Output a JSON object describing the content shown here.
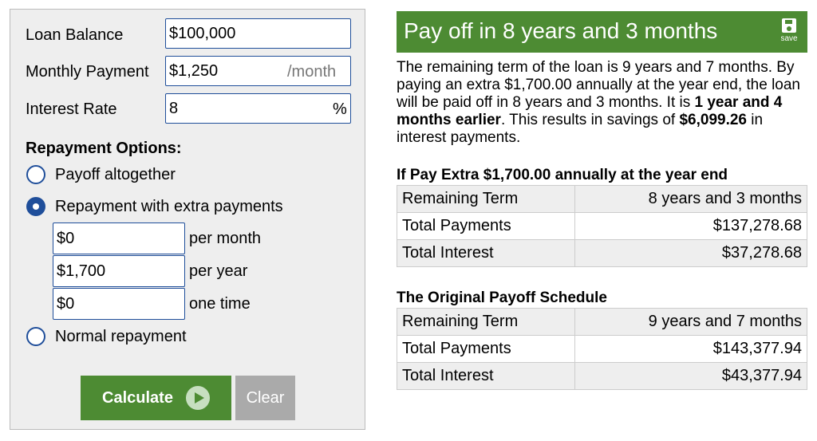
{
  "form": {
    "loan_balance": {
      "label": "Loan Balance",
      "value": "$100,000"
    },
    "monthly_payment": {
      "label": "Monthly Payment",
      "value": "$1,250",
      "suffix": "/month"
    },
    "interest_rate": {
      "label": "Interest Rate",
      "value": "8",
      "suffix": "%"
    },
    "repayment_heading": "Repayment Options:",
    "options": [
      {
        "label": "Payoff altogether",
        "checked": false
      },
      {
        "label": "Repayment with extra payments",
        "checked": true
      },
      {
        "label": "Normal repayment",
        "checked": false
      }
    ],
    "extra": [
      {
        "value": "$0",
        "label": "per month"
      },
      {
        "value": "$1,700",
        "label": "per year"
      },
      {
        "value": "$0",
        "label": "one time"
      }
    ],
    "calculate_label": "Calculate",
    "clear_label": "Clear"
  },
  "results": {
    "title": "Pay off in 8 years and 3 months",
    "save_label": "save",
    "summary": {
      "p1": "The remaining term of the loan is 9 years and 7 months. By paying an extra $1,700.00 annually at the year end, the loan will be paid off in 8 years and 3 months. It is ",
      "b1": "1 year and 4 months earlier",
      "p2": ". This results in savings of ",
      "b2": "$6,099.26",
      "p3": " in interest payments."
    },
    "extra_table": {
      "caption": "If Pay Extra $1,700.00 annually at the year end",
      "rows": [
        {
          "key": "Remaining Term",
          "value": "8 years and 3 months"
        },
        {
          "key": "Total Payments",
          "value": "$137,278.68"
        },
        {
          "key": "Total Interest",
          "value": "$37,278.68"
        }
      ]
    },
    "original_table": {
      "caption": "The Original Payoff Schedule",
      "rows": [
        {
          "key": "Remaining Term",
          "value": "9 years and 7 months"
        },
        {
          "key": "Total Payments",
          "value": "$143,377.94"
        },
        {
          "key": "Total Interest",
          "value": "$43,377.94"
        }
      ]
    }
  },
  "colors": {
    "accent_green": "#4d8b33",
    "input_border_blue": "#1f4e9a",
    "clear_gray": "#aaaaaa"
  },
  "icons": [
    "radio-button",
    "play-icon",
    "save-icon"
  ]
}
